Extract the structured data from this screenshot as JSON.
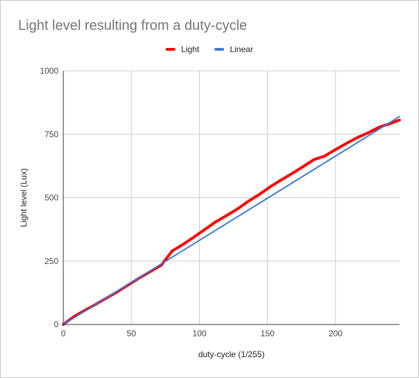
{
  "chart_data": {
    "type": "line",
    "title": "Light level resulting from a duty-cycle",
    "xlabel": "duty-cycle (1/255)",
    "ylabel": "Light level (Lux)",
    "xlim": [
      0,
      247
    ],
    "ylim": [
      0,
      1000
    ],
    "x_ticks": [
      0,
      50,
      100,
      150,
      200
    ],
    "y_ticks": [
      0,
      250,
      500,
      750,
      1000
    ],
    "grid": true,
    "legend_position": "top",
    "series": [
      {
        "name": "Light",
        "color": "#ff0000",
        "points": [
          [
            0,
            0
          ],
          [
            8,
            32
          ],
          [
            24,
            80
          ],
          [
            40,
            130
          ],
          [
            56,
            184
          ],
          [
            72,
            234
          ],
          [
            80,
            290
          ],
          [
            88,
            316
          ],
          [
            96,
            345
          ],
          [
            104,
            375
          ],
          [
            112,
            405
          ],
          [
            120,
            430
          ],
          [
            128,
            456
          ],
          [
            136,
            486
          ],
          [
            144,
            513
          ],
          [
            152,
            543
          ],
          [
            160,
            570
          ],
          [
            168,
            595
          ],
          [
            176,
            622
          ],
          [
            184,
            650
          ],
          [
            192,
            664
          ],
          [
            200,
            690
          ],
          [
            208,
            714
          ],
          [
            216,
            737
          ],
          [
            224,
            756
          ],
          [
            232,
            778
          ],
          [
            240,
            792
          ],
          [
            247,
            806
          ]
        ]
      },
      {
        "name": "Linear",
        "color": "#3c78d8",
        "points": [
          [
            0,
            0
          ],
          [
            247,
            820
          ]
        ]
      }
    ]
  }
}
